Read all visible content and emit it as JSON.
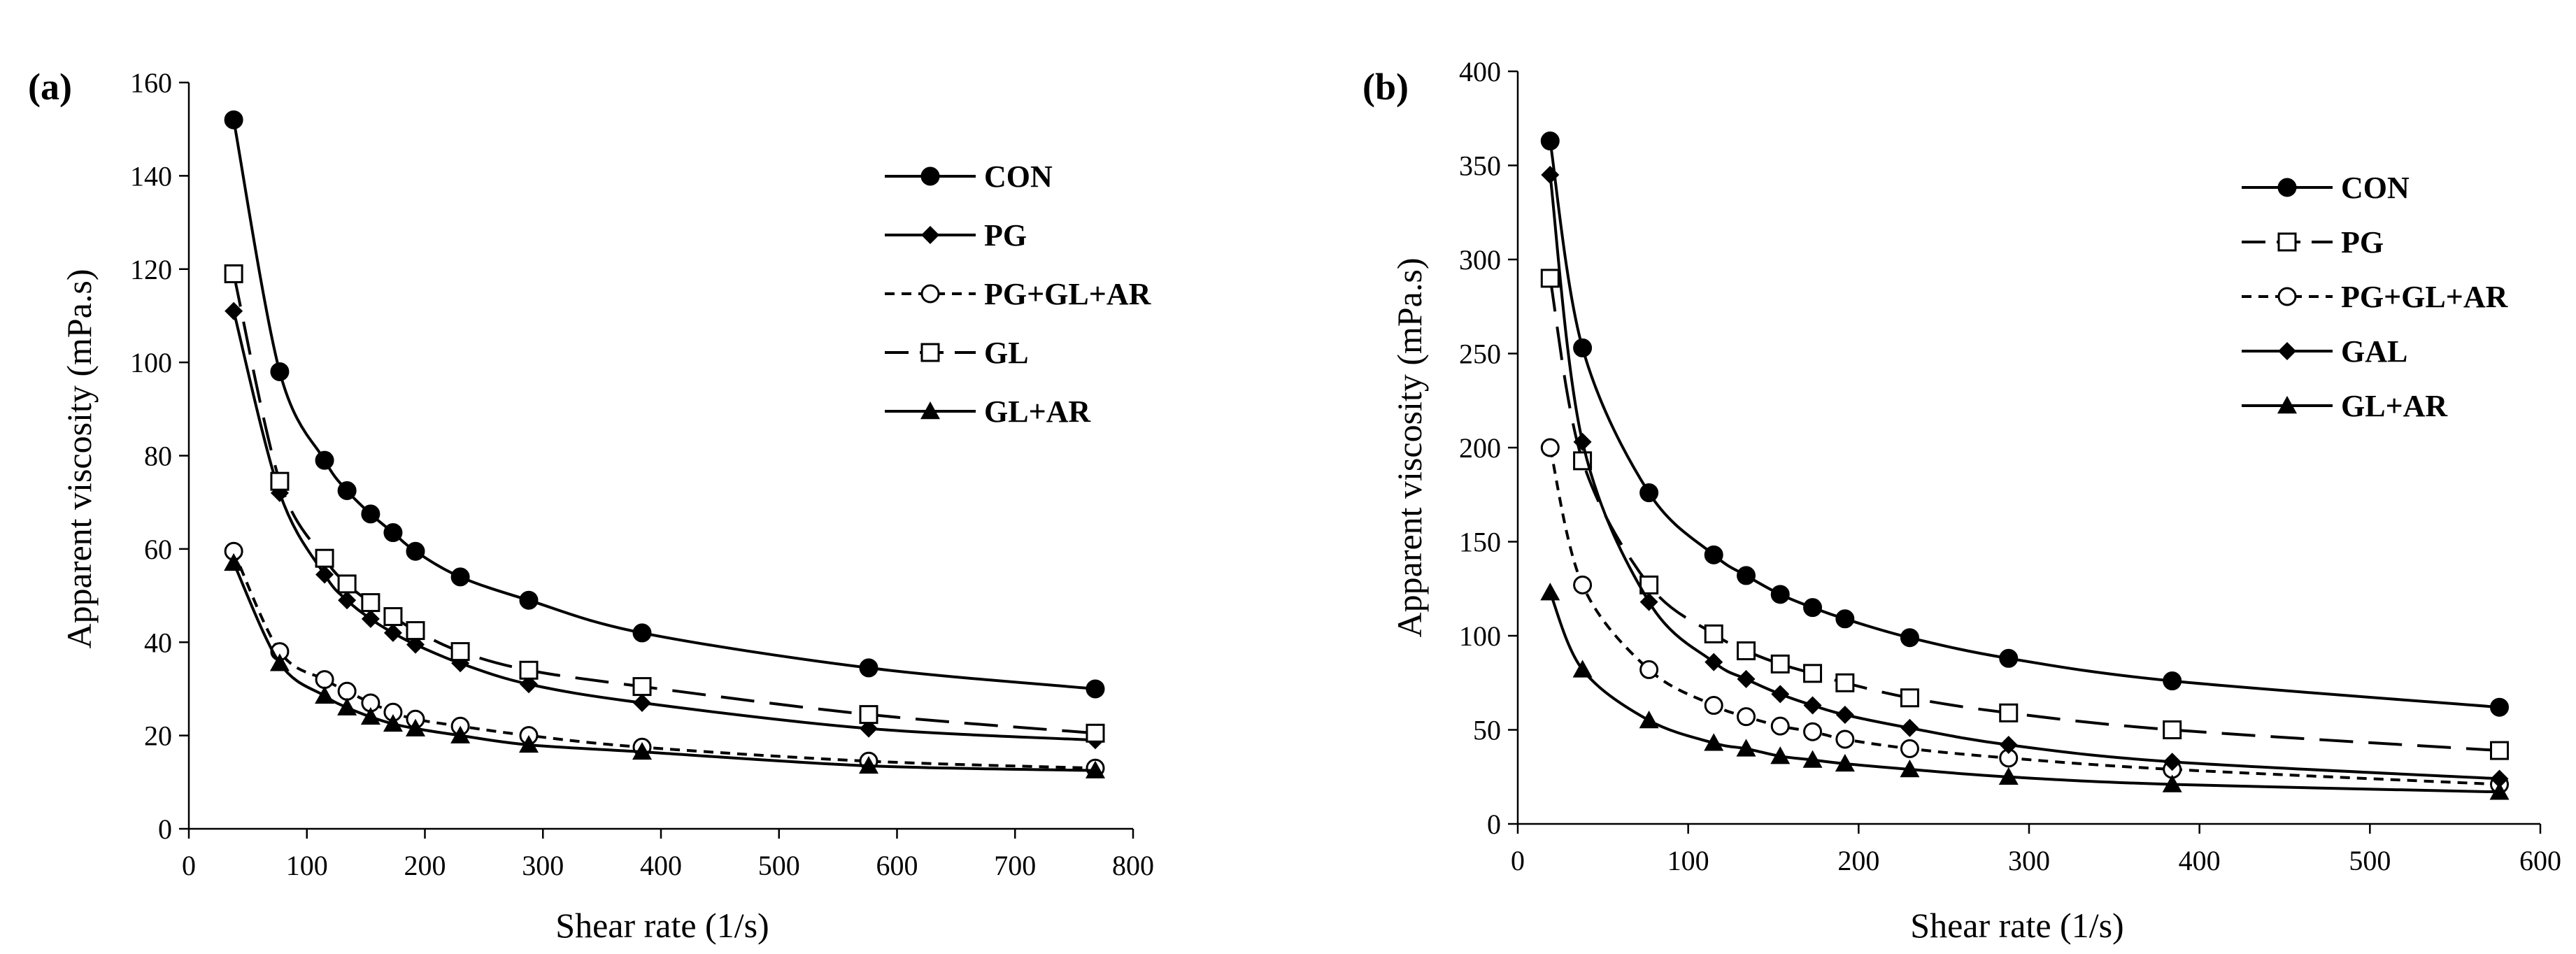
{
  "chart_data": [
    {
      "type": "line",
      "panel_label": "(a)",
      "title": "",
      "xlabel": "Shear rate (1/s)",
      "ylabel": "Apparent  viscosity (mPa.s)",
      "xlim": [
        0,
        800
      ],
      "ylim": [
        0,
        160
      ],
      "xticks": [
        "0",
        "100",
        "200",
        "300",
        "400",
        "500",
        "600",
        "700",
        "800"
      ],
      "yticks": [
        "0",
        "20",
        "40",
        "60",
        "80",
        "100",
        "120",
        "140",
        "160"
      ],
      "grid": false,
      "legend_position": "top-right",
      "x": [
        38,
        77,
        115,
        134,
        154,
        173,
        192,
        230,
        288,
        384,
        576,
        768
      ],
      "series": [
        {
          "name": "CON",
          "marker": "filled-circle",
          "dash": "solid",
          "values": [
            152,
            98,
            79,
            72.5,
            67.5,
            63.5,
            59.5,
            54,
            49,
            42,
            34.5,
            30
          ]
        },
        {
          "name": "PG",
          "marker": "filled-diamond",
          "dash": "solid",
          "values": [
            111,
            72,
            54.5,
            49,
            45,
            42,
            39.5,
            35.5,
            31,
            27,
            21.5,
            19
          ]
        },
        {
          "name": "PG+GL+AR",
          "marker": "open-circle",
          "dash": "dotted",
          "values": [
            59.5,
            38,
            32,
            29.5,
            27,
            25,
            23.5,
            22,
            20,
            17.5,
            14.5,
            13
          ]
        },
        {
          "name": "GL",
          "marker": "open-square",
          "dash": "long-dash",
          "values": [
            119,
            74.5,
            58,
            52.5,
            48.5,
            45.5,
            42.5,
            38,
            34,
            30.5,
            24.5,
            20.5
          ]
        },
        {
          "name": "GL+AR",
          "marker": "filled-triangle",
          "dash": "solid",
          "values": [
            57,
            35.5,
            28.5,
            26,
            24,
            22.5,
            21.5,
            20,
            18,
            16.5,
            13.5,
            12.5
          ]
        }
      ]
    },
    {
      "type": "line",
      "panel_label": "(b)",
      "title": "",
      "xlabel": "Shear rate (1/s)",
      "ylabel": "Apparent viscosity (mPa.s)",
      "xlim": [
        0,
        600
      ],
      "ylim": [
        0,
        400
      ],
      "xticks": [
        "0",
        "100",
        "200",
        "300",
        "400",
        "500",
        "600"
      ],
      "yticks": [
        "0",
        "50",
        "100",
        "150",
        "200",
        "250",
        "300",
        "350",
        "400"
      ],
      "grid": false,
      "legend_position": "top-right",
      "x": [
        19,
        38,
        77,
        115,
        134,
        154,
        173,
        192,
        230,
        288,
        384,
        576
      ],
      "series": [
        {
          "name": "CON",
          "marker": "filled-circle",
          "dash": "solid",
          "values": [
            363,
            253,
            176,
            143,
            132,
            122,
            115,
            109,
            99,
            88,
            76,
            62
          ]
        },
        {
          "name": "PG",
          "marker": "open-square",
          "dash": "long-dash",
          "values": [
            290,
            193,
            127,
            101,
            92,
            85,
            80,
            75,
            67,
            59,
            50,
            39
          ]
        },
        {
          "name": "PG+GL+AR",
          "marker": "open-circle",
          "dash": "dotted",
          "values": [
            200,
            127,
            82,
            63,
            57,
            52,
            49,
            45,
            40,
            35,
            29,
            21
          ]
        },
        {
          "name": "GAL",
          "marker": "filled-diamond",
          "dash": "solid",
          "values": [
            345,
            203,
            118,
            86,
            77,
            69,
            63,
            58,
            51,
            42,
            33,
            24
          ]
        },
        {
          "name": "GL+AR",
          "marker": "filled-triangle",
          "dash": "solid",
          "values": [
            123,
            82,
            55,
            43,
            40,
            36,
            34,
            32,
            29,
            25,
            21,
            17
          ]
        }
      ]
    }
  ]
}
